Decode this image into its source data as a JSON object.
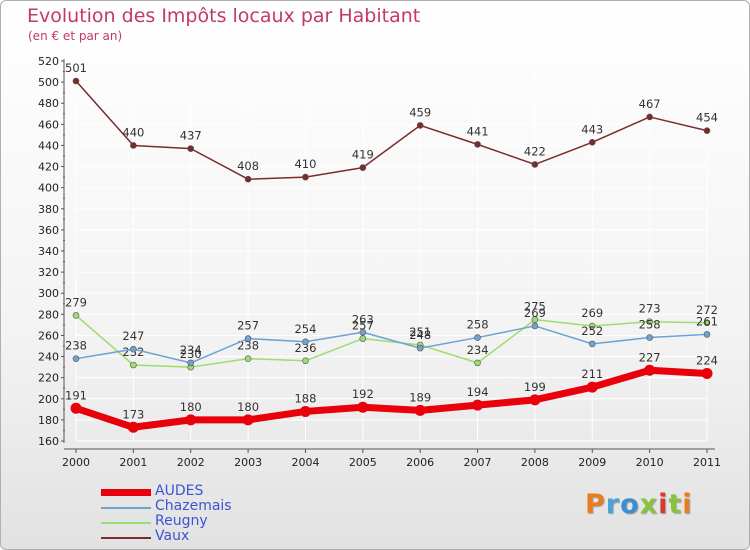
{
  "title": "Evolution des Impôts locaux par Habitant",
  "subtitle": "(en € et par an)",
  "logo": {
    "text": "Proxiti",
    "colors": [
      "#e87d1e",
      "#4aa3d8",
      "#3b8fd1",
      "#88c23f",
      "#d93a2b",
      "#88c23f",
      "#e87d1e"
    ]
  },
  "chart_data": {
    "type": "line",
    "title": "Evolution des Impôts locaux par Habitant",
    "subtitle": "(en € et par an)",
    "xlabel": "",
    "ylabel": "",
    "ylim": [
      160,
      520
    ],
    "yticks": [
      160,
      180,
      200,
      220,
      240,
      260,
      280,
      300,
      320,
      340,
      360,
      380,
      400,
      420,
      440,
      460,
      480,
      500,
      520
    ],
    "categories": [
      "2000",
      "2001",
      "2002",
      "2003",
      "2004",
      "2005",
      "2006",
      "2007",
      "2008",
      "2009",
      "2010",
      "2011"
    ],
    "legend_position": "bottom-left",
    "series": [
      {
        "name": "AUDES",
        "color": "#e8000b",
        "values": [
          191,
          173,
          180,
          180,
          188,
          192,
          189,
          194,
          199,
          211,
          227,
          224
        ]
      },
      {
        "name": "Chazemais",
        "color": "#6fa3d2",
        "values": [
          238,
          247,
          234,
          257,
          254,
          263,
          248,
          258,
          269,
          252,
          258,
          261
        ]
      },
      {
        "name": "Reugny",
        "color": "#9ddc6e",
        "values": [
          279,
          232,
          230,
          238,
          236,
          257,
          251,
          234,
          275,
          269,
          273,
          272
        ]
      },
      {
        "name": "Vaux",
        "color": "#7a2b2b",
        "values": [
          501,
          440,
          437,
          408,
          410,
          419,
          459,
          441,
          422,
          443,
          467,
          454
        ]
      }
    ]
  }
}
